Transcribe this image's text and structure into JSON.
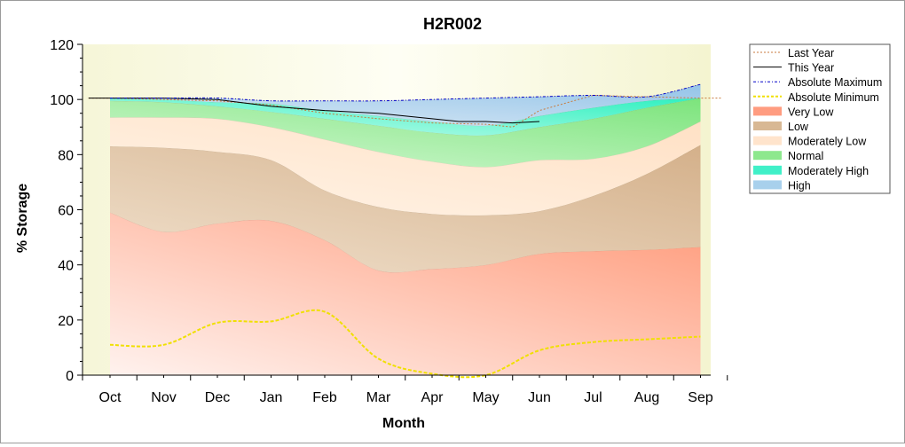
{
  "chart_data": {
    "type": "area",
    "title": "H2R002",
    "xlabel": "Month",
    "ylabel": "% Storage",
    "ylim": [
      0,
      120
    ],
    "y_ticks": [
      0,
      20,
      40,
      60,
      80,
      100,
      120
    ],
    "grid": false,
    "legend_position": "right",
    "categories": [
      "Oct",
      "Nov",
      "Dec",
      "Jan",
      "Feb",
      "Mar",
      "Apr",
      "May",
      "Jun",
      "Jul",
      "Aug",
      "Sep"
    ],
    "bands": [
      {
        "name": "Very Low",
        "lower": [
          0,
          0,
          0,
          0,
          0,
          0,
          0,
          0,
          0,
          0,
          0,
          0
        ],
        "upper": [
          59,
          52,
          55,
          56,
          49,
          38,
          38.5,
          40,
          44,
          45,
          45.5,
          46.5
        ]
      },
      {
        "name": "Low",
        "lower": [
          59,
          52,
          55,
          56,
          49,
          38,
          38.5,
          40,
          44,
          45,
          45.5,
          46.5
        ],
        "upper": [
          83,
          82.5,
          81,
          78,
          67,
          61,
          58.5,
          58,
          59.5,
          65,
          73,
          83.5
        ]
      },
      {
        "name": "Moderately Low",
        "lower": [
          83,
          82.5,
          81,
          78,
          67,
          61,
          58.5,
          58,
          59.5,
          65,
          73,
          83.5
        ],
        "upper": [
          93.5,
          93.5,
          93,
          90,
          85.5,
          81,
          77.5,
          75.5,
          78,
          78.5,
          83,
          92
        ]
      },
      {
        "name": "Normal",
        "lower": [
          93.5,
          93.5,
          93,
          90,
          85.5,
          81,
          77.5,
          75.5,
          78,
          78.5,
          83,
          92
        ],
        "upper": [
          99.5,
          99,
          97.5,
          95.5,
          93,
          90.5,
          88,
          87,
          90,
          93,
          97,
          100.5
        ]
      },
      {
        "name": "Moderately High",
        "lower": [
          99.5,
          99,
          97.5,
          95.5,
          93,
          90.5,
          88,
          87,
          90,
          93,
          97,
          100.5
        ],
        "upper": [
          100.5,
          100,
          99,
          98.5,
          96,
          94,
          92,
          90.5,
          94,
          97,
          99.5,
          100.5
        ]
      },
      {
        "name": "High",
        "lower": [
          100.5,
          100,
          99,
          98.5,
          96,
          94,
          92,
          90.5,
          94,
          97,
          99.5,
          100.5
        ],
        "upper": [
          100.5,
          100.5,
          100.5,
          99.5,
          99.5,
          99.5,
          100,
          100.5,
          101,
          101.5,
          101,
          105.5
        ]
      }
    ],
    "series": [
      {
        "name": "Last Year",
        "x": [
          -0.4,
          0,
          1,
          2,
          3,
          4,
          5,
          6,
          7,
          7.5,
          8,
          9,
          10,
          11,
          11.4
        ],
        "values": [
          100.5,
          100.5,
          100,
          99.5,
          98,
          95,
          93,
          91.5,
          91,
          90,
          96,
          101.5,
          101,
          100.5,
          100.5
        ]
      },
      {
        "name": "This Year",
        "x": [
          -0.4,
          0,
          1,
          2,
          3,
          4,
          5,
          6,
          6.5,
          7,
          7.5,
          8
        ],
        "values": [
          100.5,
          100.5,
          100.5,
          100,
          97.5,
          96,
          95,
          93,
          92,
          92,
          91.5,
          92
        ]
      },
      {
        "name": "Absolute Maximum",
        "x": [
          0,
          1,
          2,
          3,
          4,
          5,
          6,
          7,
          8,
          9,
          10,
          11
        ],
        "values": [
          100.5,
          100.5,
          100.5,
          99.5,
          99.5,
          99.5,
          100,
          100.5,
          101,
          101.5,
          101,
          105.5
        ]
      },
      {
        "name": "Absolute Minimum",
        "x": [
          0,
          1,
          2,
          3,
          4,
          5,
          6,
          7,
          8,
          9,
          10,
          11
        ],
        "values": [
          11,
          11,
          19,
          19.5,
          23,
          6,
          0.5,
          0,
          9,
          12,
          13,
          14
        ]
      }
    ],
    "legend": [
      {
        "label": "Last Year",
        "kind": "line",
        "color": "#c87a3c",
        "dash": "2,2"
      },
      {
        "label": "This Year",
        "kind": "line",
        "color": "#000000",
        "dash": ""
      },
      {
        "label": "Absolute Maximum",
        "kind": "line",
        "color": "#0000c8",
        "dash": "3,2,1,2"
      },
      {
        "label": "Absolute Minimum",
        "kind": "line",
        "color": "#f0e000",
        "dash": "3,2"
      },
      {
        "label": "Very Low",
        "kind": "area",
        "color": "#ff9c80"
      },
      {
        "label": "Low",
        "kind": "area",
        "color": "#d8b894"
      },
      {
        "label": "Moderately Low",
        "kind": "area",
        "color": "#ffe4cc"
      },
      {
        "label": "Normal",
        "kind": "area",
        "color": "#8ee88e"
      },
      {
        "label": "Moderately High",
        "kind": "area",
        "color": "#40f0c8"
      },
      {
        "label": "High",
        "kind": "area",
        "color": "#a8d0ec"
      }
    ],
    "colors": {
      "background": "#fdfde8",
      "very_low": "#ff9c80",
      "low": "#d8b894",
      "moderately_low": "#ffe4cc",
      "normal": "#8ee88e",
      "moderately_high": "#40f0c8",
      "high": "#a8d0ec",
      "last_year": "#c87a3c",
      "this_year": "#000000",
      "absolute_maximum": "#0000c8",
      "absolute_minimum": "#f0e000"
    }
  }
}
